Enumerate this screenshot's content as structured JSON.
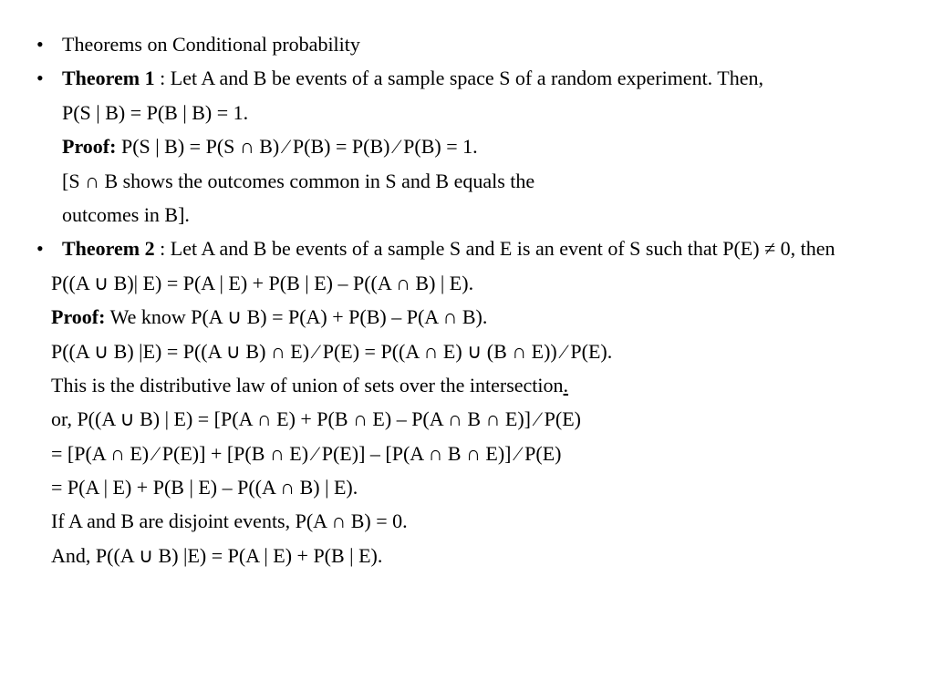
{
  "doc": {
    "background_color": "#ffffff",
    "text_color": "#000000",
    "font_family": "Times New Roman",
    "font_size_pt": 22,
    "line_height": 1.7,
    "lines": {
      "l1": "Theorems on Conditional probability",
      "l2a": "Theorem 1",
      "l2b": " : Let A and B be events of a sample space S of a random experiment. Then,",
      "l3": "P(S | B) = P(B | B) = 1.",
      "l4a": "Proof:",
      "l4b": " P(S | B) = P(S ∩ B) ∕ P(B) = P(B) ∕ P(B) = 1.",
      "l5": " [S ∩ B shows the outcomes common in S and B equals the",
      "l6": " outcomes in B].",
      "l7a": "Theorem 2",
      "l7b": " : Let A and B be events of a sample S and E is an event of S such that P(E) ≠ 0, then",
      "l8": "P((A ∪ B)| E) = P(A | E) + P(B | E) – P((A ∩ B) | E).",
      "l9a": "Proof:",
      "l9b": " We know P(A ∪ B) = P(A) + P(B) – P(A ∩ B).",
      "l10": "P((A ∪ B) |E) = P((A ∪ B) ∩ E) ∕ P(E) = P((A ∩ E) ∪ (B ∩ E)) ∕ P(E).",
      "l11a": "This is the distributive law of union of sets over the intersection",
      "l11b": ".",
      "l12": "or, P((A ∪ B) | E)  = [P(A ∩ E) + P(B ∩ E) – P(A ∩ B ∩ E)] ∕ P(E)",
      "l13": "= [P(A ∩ E) ∕ P(E)] + [P(B ∩ E) ∕ P(E)]  – [P(A ∩ B ∩ E)] ∕ P(E)",
      "l14": "= P(A | E) + P(B | E) – P((A ∩ B) | E).",
      "l15": "If A and B are disjoint events, P(A ∩ B) = 0.",
      "l16": "And, P((A ∪ B) |E) = P(A | E) + P(B | E)."
    }
  }
}
